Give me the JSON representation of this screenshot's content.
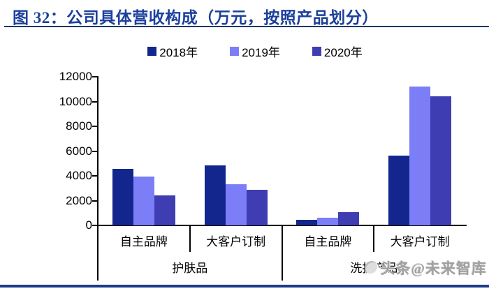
{
  "header": {
    "title": "图 32：公司具体营收构成（万元，按照产品划分）"
  },
  "colors": {
    "title": "#1B3F9B",
    "title_rule": "#1F3864",
    "bottom_bar": "#1A3A8C",
    "axis": "#000000",
    "series_2018": "#12268E",
    "series_2019": "#7C7EF8",
    "series_2020": "#3E3EB2"
  },
  "legend": [
    {
      "label": "2018年",
      "color": "#12268E"
    },
    {
      "label": "2019年",
      "color": "#7C7EF8"
    },
    {
      "label": "2020年",
      "color": "#3E3EB2"
    }
  ],
  "watermark": {
    "text": "头条@未来智库",
    "logo": "paw-logo-icon"
  },
  "chart_data": {
    "type": "bar",
    "title": "公司具体营收构成（万元，按照产品划分）",
    "unit": "万元",
    "categories_level1": [
      "自主品牌",
      "大客户订制",
      "自主品牌",
      "大客户订制"
    ],
    "categories_level2": [
      "护肤品",
      "洗护产品"
    ],
    "series": [
      {
        "name": "2018年",
        "color": "#12268E",
        "values": [
          4550,
          4850,
          450,
          5650
        ]
      },
      {
        "name": "2019年",
        "color": "#7C7EF8",
        "values": [
          3950,
          3300,
          600,
          11200
        ]
      },
      {
        "name": "2020年",
        "color": "#3E3EB2",
        "values": [
          2400,
          2900,
          1050,
          10450
        ]
      }
    ],
    "ylim": [
      0,
      12000
    ],
    "ytick_step": 2000,
    "yticks": [
      0,
      2000,
      4000,
      6000,
      8000,
      10000,
      12000
    ],
    "legend_position": "top",
    "grid": false
  }
}
